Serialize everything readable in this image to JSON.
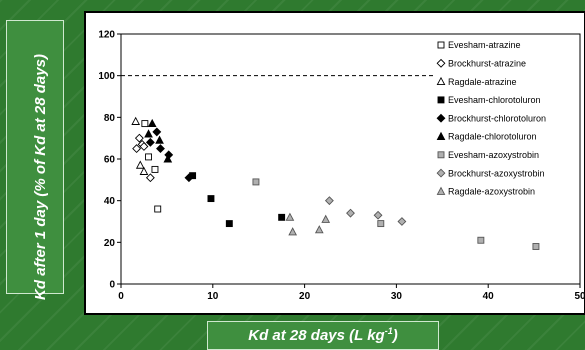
{
  "chart_data": {
    "type": "scatter",
    "xlabel": "Kd at 28 days (L kg",
    "xlabel_sup": "-1",
    "xlabel_suffix": ")",
    "ylabel": "Kd after 1 day (% of Kd at 28 days)",
    "xlim": [
      0,
      50
    ],
    "ylim": [
      0,
      120
    ],
    "xticks": [
      0,
      10,
      20,
      30,
      40,
      50
    ],
    "yticks": [
      0,
      20,
      40,
      60,
      80,
      100,
      120
    ],
    "grid": false,
    "legend_position": "right",
    "reference_line": {
      "y": 100,
      "style": "dashed",
      "x_end": 34
    },
    "series": [
      {
        "name": "Evesham-atrazine",
        "marker": "square-open",
        "points": [
          [
            2.6,
            77
          ],
          [
            3.0,
            61
          ],
          [
            3.7,
            55
          ],
          [
            4.0,
            36
          ]
        ]
      },
      {
        "name": "Brockhurst-atrazine",
        "marker": "diamond-open",
        "points": [
          [
            1.7,
            65
          ],
          [
            2.0,
            70
          ],
          [
            2.3,
            67
          ],
          [
            2.5,
            66
          ],
          [
            3.2,
            51
          ]
        ]
      },
      {
        "name": "Ragdale-atrazine",
        "marker": "triangle-open",
        "points": [
          [
            1.6,
            78
          ],
          [
            2.1,
            57
          ],
          [
            2.5,
            54
          ]
        ]
      },
      {
        "name": "Evesham-chlorotoluron",
        "marker": "square-filled",
        "points": [
          [
            7.8,
            52
          ],
          [
            9.8,
            41
          ],
          [
            11.8,
            29
          ],
          [
            17.5,
            32
          ]
        ]
      },
      {
        "name": "Brockhurst-chlorotoluron",
        "marker": "diamond-filled",
        "points": [
          [
            3.2,
            68
          ],
          [
            3.9,
            73
          ],
          [
            4.3,
            65
          ],
          [
            5.2,
            62
          ],
          [
            7.4,
            51
          ]
        ]
      },
      {
        "name": "Ragdale-chlorotoluron",
        "marker": "triangle-filled",
        "points": [
          [
            3.0,
            72
          ],
          [
            3.4,
            77
          ],
          [
            4.2,
            69
          ],
          [
            5.1,
            60
          ]
        ]
      },
      {
        "name": "Evesham-azoxystrobin",
        "marker": "square-gray",
        "points": [
          [
            14.7,
            49
          ],
          [
            28.3,
            29
          ],
          [
            39.2,
            21
          ],
          [
            45.2,
            18
          ]
        ]
      },
      {
        "name": "Brockhurst-azoxystrobin",
        "marker": "diamond-gray",
        "points": [
          [
            22.7,
            40
          ],
          [
            25.0,
            34
          ],
          [
            28.0,
            33
          ],
          [
            30.6,
            30
          ]
        ]
      },
      {
        "name": "Ragdale-azoxystrobin",
        "marker": "triangle-gray",
        "points": [
          [
            18.4,
            32
          ],
          [
            18.7,
            25
          ],
          [
            21.6,
            26
          ],
          [
            22.3,
            31
          ]
        ]
      }
    ]
  }
}
